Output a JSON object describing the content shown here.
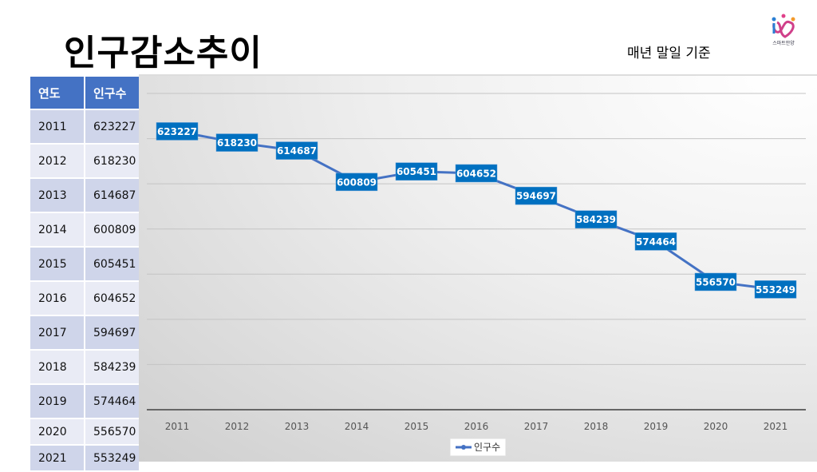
{
  "title": "인구감소추이",
  "subtitle": "매년 말일 기준",
  "logo_text": "스마트안양",
  "table": {
    "headers": [
      "연도",
      "인구수"
    ],
    "rows": [
      [
        "2011",
        "623227"
      ],
      [
        "2012",
        "618230"
      ],
      [
        "2013",
        "614687"
      ],
      [
        "2014",
        "600809"
      ],
      [
        "2015",
        "605451"
      ],
      [
        "2016",
        "604652"
      ],
      [
        "2017",
        "594697"
      ],
      [
        "2018",
        "584239"
      ],
      [
        "2019",
        "574464"
      ],
      [
        "2020",
        "556570"
      ],
      [
        "2021",
        "553249"
      ]
    ]
  },
  "colors": {
    "line": "#4472c4",
    "label_bg": "#0070c0",
    "header": "#4472c4"
  },
  "chart_data": {
    "type": "line",
    "title": "",
    "xlabel": "",
    "ylabel": "",
    "categories": [
      "2011",
      "2012",
      "2013",
      "2014",
      "2015",
      "2016",
      "2017",
      "2018",
      "2019",
      "2020",
      "2021"
    ],
    "series": [
      {
        "name": "인구수",
        "values": [
          623227,
          618230,
          614687,
          600809,
          605451,
          604652,
          594697,
          584239,
          574464,
          556570,
          553249
        ]
      }
    ],
    "ylim": [
      500000,
      640000
    ],
    "ystep": 20000,
    "grid": true,
    "legend": "bottom",
    "data_labels": true
  }
}
